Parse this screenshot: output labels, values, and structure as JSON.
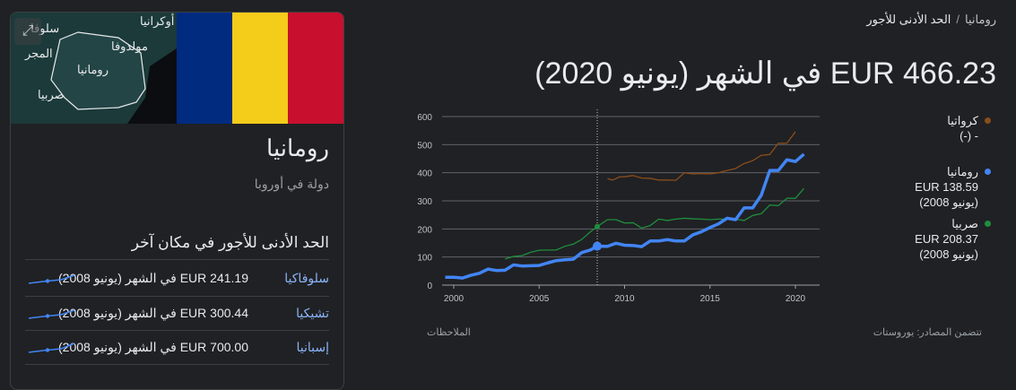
{
  "breadcrumb": {
    "parent": "رومانيا",
    "current": "الحد الأدنى للأجور",
    "separator": "/"
  },
  "headline": "EUR 466.23 في الشهر (يونيو 2020)",
  "card": {
    "map_labels": [
      "أوكرانيا",
      "سلوفا",
      "مولدوفا",
      "المجر",
      "رومانيا",
      "صربيا"
    ],
    "flag_colors": [
      "#002b7f",
      "#fcd116",
      "#ce1126"
    ],
    "title": "رومانيا",
    "subtitle": "دولة في أوروبا",
    "other_heading": "الحد الأدنى للأجور في مكان آخر",
    "others": [
      {
        "country": "سلوفاكيا",
        "value": "EUR 241.19 في الشهر (يونيو 2008)"
      },
      {
        "country": "تشيكيا",
        "value": "EUR 300.44 في الشهر (يونيو 2008)"
      },
      {
        "country": "إسبانيا",
        "value": "EUR 700.00 في الشهر (يونيو 2008)"
      }
    ]
  },
  "legend": [
    {
      "name": "كرواتيا",
      "value": "- (-)",
      "date": "",
      "color": "#8a4d1c"
    },
    {
      "name": "رومانيا",
      "value": "EUR 138.59",
      "date": "(يونيو 2008)",
      "color": "#4285f4"
    },
    {
      "name": "صربيا",
      "value": "EUR 208.37",
      "date": "(يونيو 2008)",
      "color": "#1e8e3e"
    }
  ],
  "notes_label": "الملاحظات",
  "sources_label": "تتضمن المصادر: يوروستات",
  "chart_data": {
    "type": "line",
    "xlim": [
      1999.3,
      2020.9
    ],
    "ylim": [
      0,
      600
    ],
    "xticks": [
      2000,
      2005,
      2010,
      2015,
      2020
    ],
    "yticks": [
      0,
      100,
      200,
      300,
      400,
      500,
      600
    ],
    "hover_x": 2008.4,
    "series": [
      {
        "name": "كرواتيا",
        "color": "#8a4d1c",
        "points": [
          [
            2009,
            379
          ],
          [
            2009.3,
            374
          ],
          [
            2009.7,
            385
          ],
          [
            2010,
            386
          ],
          [
            2010.5,
            390
          ],
          [
            2011,
            381
          ],
          [
            2011.5,
            380
          ],
          [
            2012,
            374
          ],
          [
            2012.5,
            374
          ],
          [
            2013,
            373
          ],
          [
            2013.5,
            400
          ],
          [
            2014,
            396
          ],
          [
            2014.5,
            397
          ],
          [
            2015,
            396
          ],
          [
            2015.5,
            400
          ],
          [
            2016,
            408
          ],
          [
            2016.5,
            415
          ],
          [
            2017,
            433
          ],
          [
            2017.5,
            443
          ],
          [
            2018,
            462
          ],
          [
            2018.5,
            465
          ],
          [
            2019,
            505
          ],
          [
            2019.5,
            505
          ],
          [
            2020,
            546
          ]
        ]
      },
      {
        "name": "صربيا",
        "color": "#1e8e3e",
        "points": [
          [
            2003,
            93
          ],
          [
            2003.5,
            102
          ],
          [
            2004,
            105
          ],
          [
            2004.5,
            117
          ],
          [
            2005,
            124
          ],
          [
            2005.5,
            125
          ],
          [
            2006,
            125
          ],
          [
            2006.5,
            138
          ],
          [
            2007,
            146
          ],
          [
            2007.5,
            163
          ],
          [
            2008,
            190
          ],
          [
            2008.4,
            208.37
          ],
          [
            2009,
            233
          ],
          [
            2009.5,
            233
          ],
          [
            2010,
            221
          ],
          [
            2010.5,
            222
          ],
          [
            2011,
            203
          ],
          [
            2011.5,
            212
          ],
          [
            2012,
            235
          ],
          [
            2012.5,
            230
          ],
          [
            2013,
            235
          ],
          [
            2013.5,
            238
          ],
          [
            2014,
            236
          ],
          [
            2014.5,
            235
          ],
          [
            2015,
            233
          ],
          [
            2015.5,
            235
          ],
          [
            2016,
            235
          ],
          [
            2016.5,
            235
          ],
          [
            2017,
            230
          ],
          [
            2017.5,
            248
          ],
          [
            2018,
            254
          ],
          [
            2018.5,
            285
          ],
          [
            2019,
            283
          ],
          [
            2019.5,
            309
          ],
          [
            2020,
            309
          ],
          [
            2020.5,
            344
          ]
        ]
      },
      {
        "name": "رومانيا",
        "color": "#4285f4",
        "points": [
          [
            1999.5,
            28
          ],
          [
            2000,
            28
          ],
          [
            2000.5,
            25
          ],
          [
            2001,
            35
          ],
          [
            2001.5,
            42
          ],
          [
            2002,
            57
          ],
          [
            2002.5,
            52
          ],
          [
            2003,
            53
          ],
          [
            2003.5,
            72
          ],
          [
            2004,
            68
          ],
          [
            2004.5,
            69
          ],
          [
            2005,
            70
          ],
          [
            2005.5,
            79
          ],
          [
            2006,
            87
          ],
          [
            2006.5,
            90
          ],
          [
            2007,
            92
          ],
          [
            2007.5,
            116
          ],
          [
            2008,
            125
          ],
          [
            2008.4,
            138.59
          ],
          [
            2009,
            138
          ],
          [
            2009.5,
            149
          ],
          [
            2010,
            142
          ],
          [
            2010.5,
            141
          ],
          [
            2011,
            137
          ],
          [
            2011.5,
            157
          ],
          [
            2012,
            157
          ],
          [
            2012.5,
            162
          ],
          [
            2013,
            157
          ],
          [
            2013.5,
            157
          ],
          [
            2014,
            179
          ],
          [
            2014.5,
            190
          ],
          [
            2015,
            205
          ],
          [
            2015.5,
            218
          ],
          [
            2016,
            238
          ],
          [
            2016.5,
            233
          ],
          [
            2017,
            275
          ],
          [
            2017.5,
            275
          ],
          [
            2018,
            320
          ],
          [
            2018.5,
            408
          ],
          [
            2019,
            408
          ],
          [
            2019.5,
            446
          ],
          [
            2020,
            440
          ],
          [
            2020.5,
            466.23
          ]
        ]
      }
    ]
  }
}
